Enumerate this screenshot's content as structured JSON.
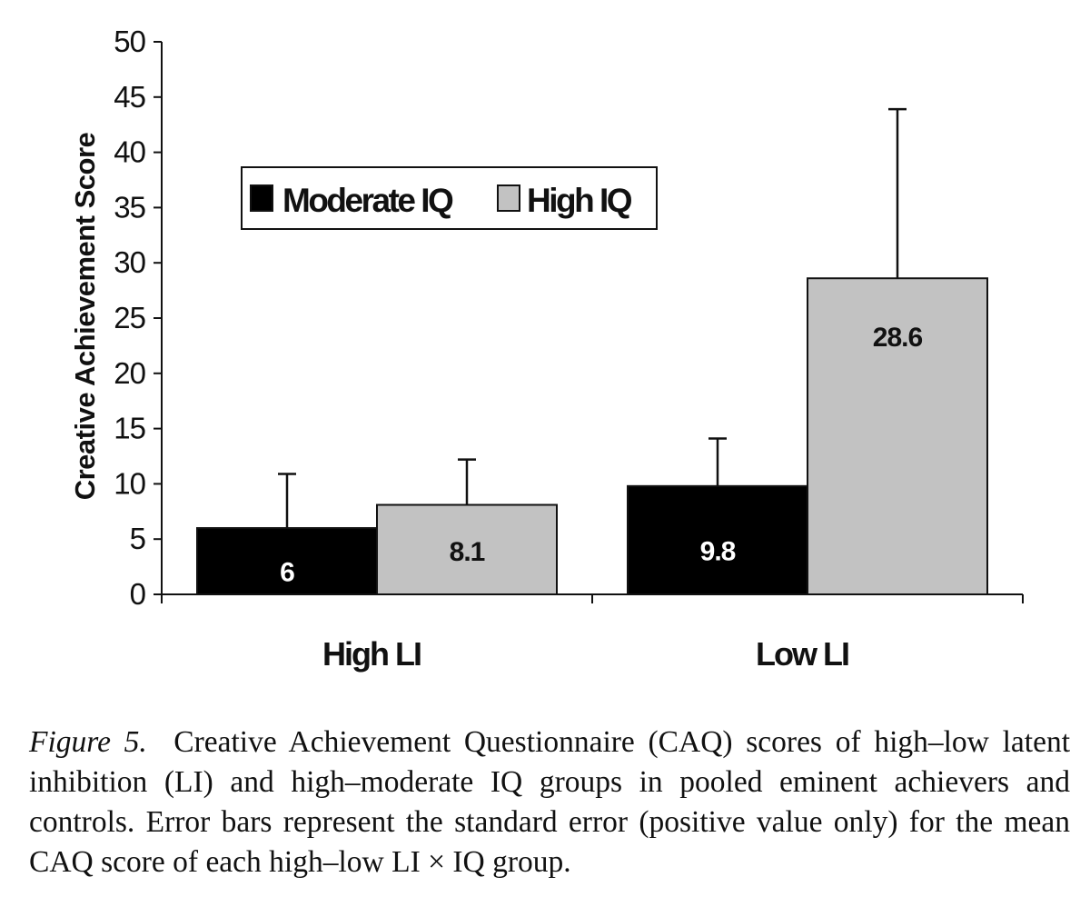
{
  "chart_data": {
    "type": "bar",
    "title": "",
    "xlabel": "",
    "ylabel": "Creative Achievement Score",
    "ylim": [
      0,
      50
    ],
    "ytick_step": 5,
    "categories": [
      "High LI",
      "Low LI"
    ],
    "series": [
      {
        "name": "Moderate IQ",
        "color": "#000000",
        "values": [
          6,
          9.8
        ],
        "error_plus": [
          4.9,
          4.3
        ],
        "labels": [
          "6",
          "9.8"
        ],
        "label_color": "#ffffff"
      },
      {
        "name": "High IQ",
        "color": "#c2c2c2",
        "values": [
          8.1,
          28.6
        ],
        "error_plus": [
          4.1,
          15.3
        ],
        "labels": [
          "8.1",
          "28.6"
        ],
        "label_color": "#111111"
      }
    ],
    "legend_position": "upper-left",
    "grid": false,
    "error_bars": "positive only"
  },
  "caption": {
    "label": "Figure 5.",
    "text": "Creative Achievement Questionnaire (CAQ) scores of high–low latent inhibition (LI) and high–moderate IQ groups in pooled eminent achievers and controls. Error bars represent the standard error (positive value only) for the mean CAQ score of each high–low LI × IQ group."
  }
}
